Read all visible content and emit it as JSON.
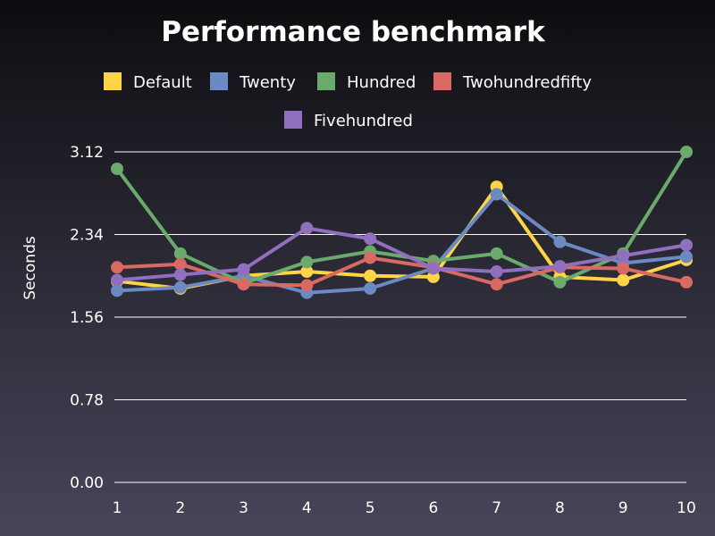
{
  "chart_data": {
    "type": "line",
    "title": "Performance benchmark",
    "xlabel": "",
    "ylabel": "Seconds",
    "x": [
      1,
      2,
      3,
      4,
      5,
      6,
      7,
      8,
      9,
      10
    ],
    "ylim": [
      0,
      3.12
    ],
    "yticks": [
      "0.00",
      "0.78",
      "1.56",
      "2.34",
      "3.12"
    ],
    "grid": "horizontal",
    "legend_position": "top",
    "series": [
      {
        "name": "Default",
        "color": "#ffd447",
        "values": [
          1.9,
          1.83,
          1.95,
          1.99,
          1.95,
          1.94,
          2.79,
          1.94,
          1.91,
          2.1
        ]
      },
      {
        "name": "Twenty",
        "color": "#6a8ac1",
        "values": [
          1.81,
          1.84,
          1.95,
          1.79,
          1.83,
          2.02,
          2.72,
          2.27,
          2.07,
          2.13
        ]
      },
      {
        "name": "Hundred",
        "color": "#6aaa6a",
        "values": [
          2.96,
          2.16,
          1.88,
          2.08,
          2.18,
          2.09,
          2.16,
          1.89,
          2.16,
          3.12
        ]
      },
      {
        "name": "Twohundredfifty",
        "color": "#d96a63",
        "values": [
          2.03,
          2.06,
          1.87,
          1.86,
          2.12,
          2.03,
          1.87,
          2.03,
          2.02,
          1.89
        ]
      },
      {
        "name": "Fivehundred",
        "color": "#8f6fbe",
        "values": [
          1.91,
          1.96,
          2.01,
          2.4,
          2.3,
          2.02,
          1.99,
          2.04,
          2.14,
          2.24
        ]
      }
    ]
  }
}
